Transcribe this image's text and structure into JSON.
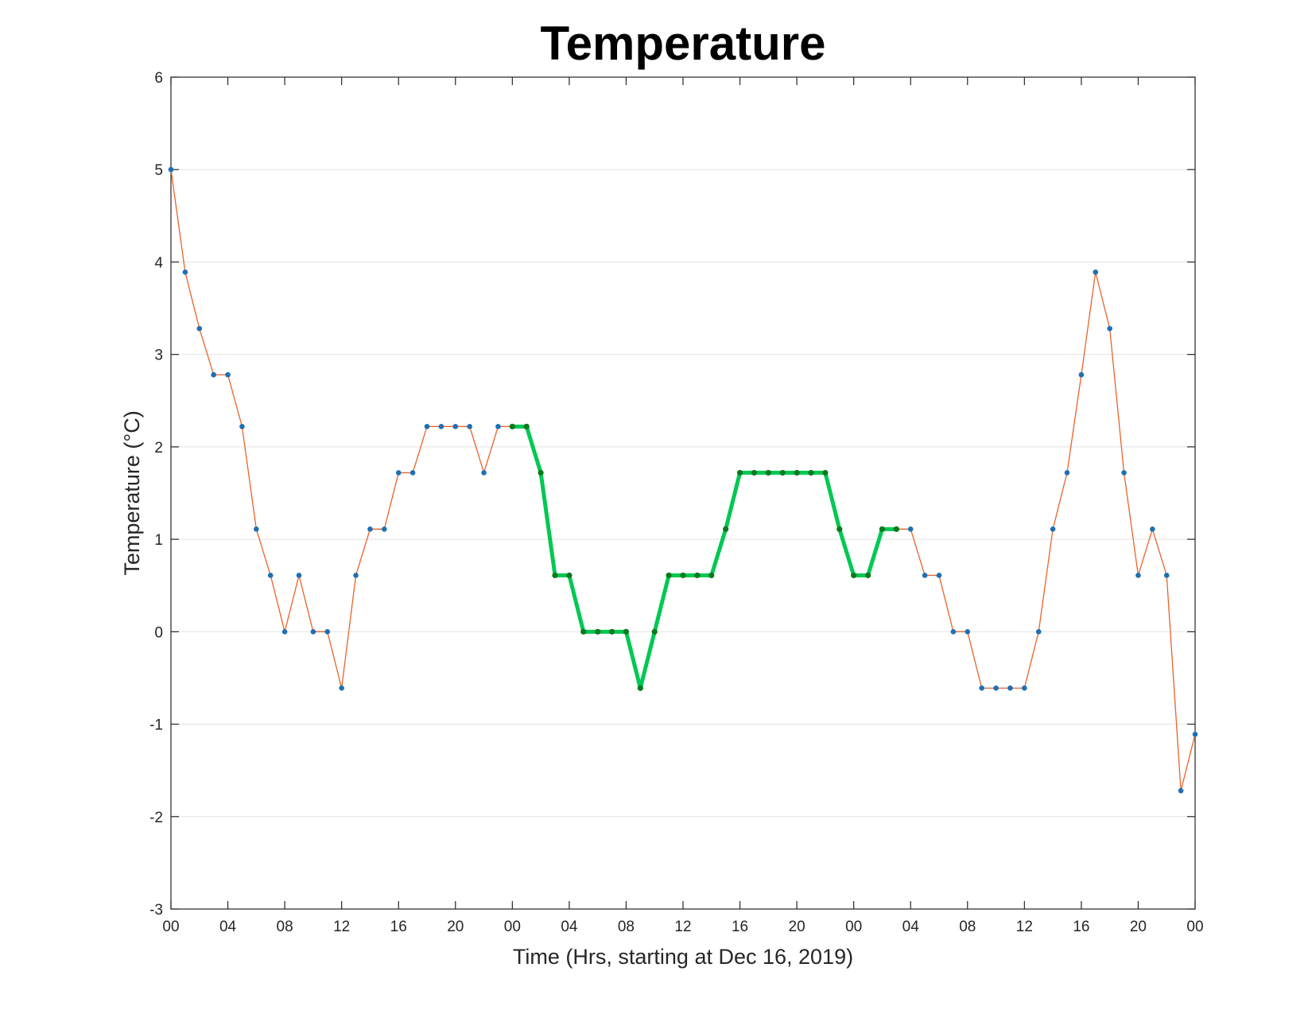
{
  "chart_data": {
    "type": "line",
    "title": "Temperature",
    "xlabel": "Time (Hrs, starting at Dec 16, 2019)",
    "ylabel": "Temperature (°C)",
    "x_start": "2019-12-16 00:00",
    "x_step": "1 hour",
    "xlim": [
      "2019-12-16 00:00",
      "2019-12-19 00:00"
    ],
    "ylim": [
      -3,
      6
    ],
    "yticks": [
      -3,
      -2,
      -1,
      0,
      1,
      2,
      3,
      4,
      5,
      6
    ],
    "xtick_labels": [
      "00",
      "04",
      "08",
      "12",
      "16",
      "20",
      "00",
      "04",
      "08",
      "12",
      "16",
      "20",
      "00",
      "04",
      "08",
      "12",
      "16",
      "20",
      "00"
    ],
    "grid": "horizontal",
    "colors": {
      "line": "#e8632b",
      "marker": "#1f6fb4",
      "highlight_line": "#00c853",
      "highlight_marker": "#0a7a1e"
    },
    "series": [
      {
        "values": [
          5,
          3.89,
          3.28,
          2.78,
          2.78,
          2.22,
          1.11,
          0.61,
          0,
          0.61,
          0,
          0,
          -0.61,
          0.61,
          1.11,
          1.11,
          1.72,
          1.72,
          2.22,
          2.22,
          2.22,
          2.22,
          1.72,
          2.22,
          2.22,
          2.22,
          1.72,
          0.61,
          0.61,
          0,
          0,
          0,
          0,
          -0.61,
          0,
          0.61,
          0.61,
          0.61,
          0.61,
          1.11,
          1.72,
          1.72,
          1.72,
          1.72,
          1.72,
          1.72,
          1.72,
          1.11,
          0.61,
          0.61,
          1.11,
          1.11,
          1.11,
          0.61,
          0.61,
          0,
          0,
          -0.61,
          -0.61,
          -0.61,
          -0.61,
          0,
          1.11,
          1.72,
          2.78,
          3.89,
          3.28,
          1.72,
          0.61,
          1.11,
          0.61,
          -1.72,
          -1.11
        ]
      },
      {
        "highlight_range": [
          "2019-12-17 00:00",
          "2019-12-18 03:00"
        ],
        "values": [
          2.22,
          2.22,
          1.72,
          0.61,
          0.61,
          0,
          0,
          0,
          0,
          -0.61,
          0,
          0.61,
          0.61,
          0.61,
          0.61,
          1.11,
          1.72,
          1.72,
          1.72,
          1.72,
          1.72,
          1.72,
          1.72,
          1.11,
          0.61,
          0.61,
          1.11,
          1.11
        ]
      }
    ]
  }
}
